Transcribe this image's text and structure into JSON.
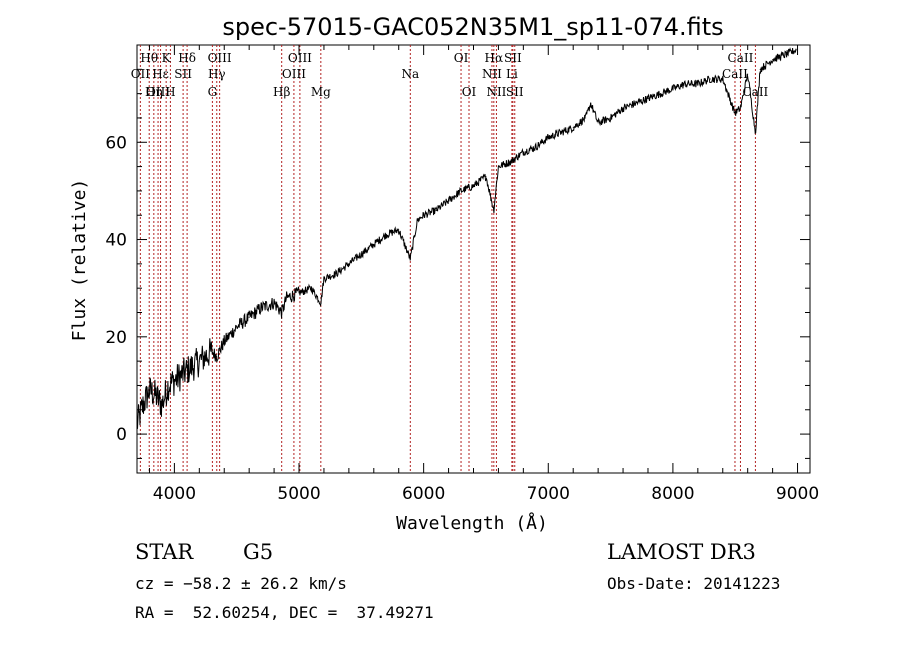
{
  "chart_data": {
    "type": "line",
    "title": "spec-57015-GAC052N35M1_sp11-074.fits",
    "xlabel": "Wavelength (Å)",
    "ylabel": "Flux (relative)",
    "xlim": [
      3700,
      9100
    ],
    "ylim": [
      -8,
      80
    ],
    "x_ticks": [
      4000,
      5000,
      6000,
      7000,
      8000,
      9000
    ],
    "y_ticks": [
      0,
      20,
      40,
      60
    ],
    "series": [
      {
        "name": "flux",
        "x": [
          3700,
          3750,
          3800,
          3850,
          3900,
          3950,
          4000,
          4050,
          4100,
          4150,
          4200,
          4250,
          4300,
          4340,
          4400,
          4500,
          4600,
          4700,
          4800,
          4861,
          4900,
          5000,
          5100,
          5175,
          5200,
          5300,
          5400,
          5500,
          5600,
          5700,
          5800,
          5893,
          5950,
          6000,
          6100,
          6200,
          6300,
          6400,
          6500,
          6563,
          6600,
          6700,
          6800,
          6900,
          7000,
          7100,
          7200,
          7300,
          7340,
          7400,
          7500,
          7600,
          7700,
          7800,
          7900,
          8000,
          8100,
          8200,
          8300,
          8400,
          8498,
          8542,
          8600,
          8662,
          8700,
          8800,
          8900,
          8990
        ],
        "y": [
          2,
          6,
          9,
          8,
          6,
          10,
          11,
          12,
          13,
          14,
          15,
          16,
          17,
          16,
          19,
          22,
          24,
          26,
          27,
          25,
          28,
          29,
          30,
          27,
          32,
          33,
          35,
          37,
          39,
          41,
          42,
          36,
          44,
          45,
          46,
          48,
          50,
          51,
          53,
          46,
          55,
          56,
          58,
          59,
          61,
          62,
          63,
          65,
          68,
          64,
          65,
          67,
          68,
          69,
          70,
          71,
          72,
          72,
          73,
          73,
          66,
          67,
          74,
          62,
          75,
          77,
          78,
          79
        ]
      }
    ],
    "annotations": [
      {
        "label": "Hθ",
        "x": 3798,
        "row": 1
      },
      {
        "label": "K",
        "x": 3934,
        "row": 1
      },
      {
        "label": "Hδ",
        "x": 4102,
        "row": 1
      },
      {
        "label": "OII",
        "x": 3727,
        "row": 2
      },
      {
        "label": "Hε",
        "x": 3889,
        "row": 2
      },
      {
        "label": "SII",
        "x": 4070,
        "row": 2
      },
      {
        "label": "OIII",
        "x": 3869,
        "row": 3
      },
      {
        "label": "Hη",
        "x": 3835,
        "row": 3
      },
      {
        "label": "H",
        "x": 3968,
        "row": 3
      },
      {
        "label": "OIII",
        "x": 4363,
        "row": 1
      },
      {
        "label": "Hγ",
        "x": 4340,
        "row": 2
      },
      {
        "label": "G",
        "x": 4305,
        "row": 3
      },
      {
        "label": "OIII",
        "x": 5007,
        "row": 1
      },
      {
        "label": "OIII",
        "x": 4959,
        "row": 2
      },
      {
        "label": "Hβ",
        "x": 4861,
        "row": 3
      },
      {
        "label": "Mg",
        "x": 5175,
        "row": 3
      },
      {
        "label": "Na",
        "x": 5893,
        "row": 2
      },
      {
        "label": "OI",
        "x": 6300,
        "row": 1
      },
      {
        "label": "OI",
        "x": 6364,
        "row": 3
      },
      {
        "label": "Hα",
        "x": 6563,
        "row": 1
      },
      {
        "label": "SII",
        "x": 6716,
        "row": 1
      },
      {
        "label": "NII",
        "x": 6548,
        "row": 2
      },
      {
        "label": "Li",
        "x": 6708,
        "row": 2
      },
      {
        "label": "NII",
        "x": 6584,
        "row": 3
      },
      {
        "label": "SII",
        "x": 6731,
        "row": 3
      },
      {
        "label": "CaII",
        "x": 8542,
        "row": 1
      },
      {
        "label": "CaII",
        "x": 8498,
        "row": 2
      },
      {
        "label": "CaII",
        "x": 8662,
        "row": 3
      }
    ],
    "line_marker_color": "#b22222",
    "grid": false
  },
  "info": {
    "object_class": "STAR",
    "subclass": "G5",
    "survey": "LAMOST DR3",
    "cz": "cz = −58.2 ± 26.2 km/s",
    "obs_date": "Obs-Date: 20141223",
    "coords": "RA =  52.60254, DEC =  37.49271"
  }
}
